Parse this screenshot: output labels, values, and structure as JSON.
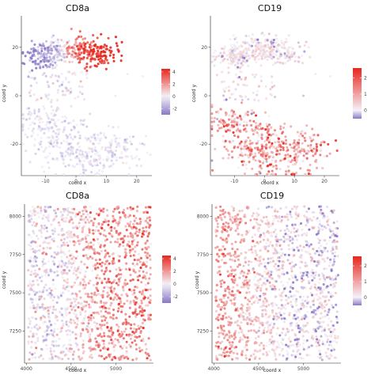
{
  "colors": {
    "low": "#8a78c8",
    "mid": "#f4f2f8",
    "high": "#e8261c",
    "axis": "#222222",
    "background": "#ffffff"
  },
  "chart_data": [
    {
      "type": "scatter",
      "title": "CD8a",
      "xlabel": "coord x",
      "ylabel": "coord y",
      "xlim": [
        -18,
        25
      ],
      "ylim": [
        -33,
        33
      ],
      "xticks": [
        "-10",
        "0",
        "10",
        "20"
      ],
      "yticks": [
        "-20",
        "0",
        "20"
      ],
      "color_scale": {
        "min": -3,
        "max": 4.5,
        "ticks": [
          "4",
          "2",
          "0",
          "-2"
        ],
        "tick_values": [
          4,
          2,
          0,
          -2
        ]
      },
      "point_pattern": "embedding_cd8a",
      "n_points": 900
    },
    {
      "type": "scatter",
      "title": "CD19",
      "xlabel": "coord x",
      "ylabel": "coord y",
      "xlim": [
        -18,
        25
      ],
      "ylim": [
        -33,
        33
      ],
      "xticks": [
        "-10",
        "0",
        "10",
        "20"
      ],
      "yticks": [
        "-20",
        "0",
        "20"
      ],
      "color_scale": {
        "min": -0.5,
        "max": 2.6,
        "ticks": [
          "2",
          "1",
          "0"
        ],
        "tick_values": [
          2,
          1,
          0
        ]
      },
      "point_pattern": "embedding_cd19",
      "n_points": 900
    },
    {
      "type": "scatter",
      "title": "CD8a",
      "xlabel": "coord x",
      "ylabel": "coord y",
      "xlim": [
        3980,
        5420
      ],
      "ylim": [
        7040,
        8080
      ],
      "xticks": [
        "4000",
        "4500",
        "5000"
      ],
      "yticks": [
        "7250",
        "7500",
        "7750",
        "8000"
      ],
      "color_scale": {
        "min": -3,
        "max": 4.5,
        "ticks": [
          "4",
          "2",
          "0",
          "-2"
        ],
        "tick_values": [
          4,
          2,
          0,
          -2
        ]
      },
      "point_pattern": "spatial_cd8a",
      "n_points": 1500
    },
    {
      "type": "scatter",
      "title": "CD19",
      "xlabel": "coord x",
      "ylabel": "coord y",
      "xlim": [
        3980,
        5420
      ],
      "ylim": [
        7040,
        8080
      ],
      "xticks": [
        "4000",
        "4500",
        "5000"
      ],
      "yticks": [
        "7250",
        "7500",
        "7750",
        "8000"
      ],
      "color_scale": {
        "min": -0.5,
        "max": 2.6,
        "ticks": [
          "2",
          "1",
          "0"
        ],
        "tick_values": [
          2,
          1,
          0
        ]
      },
      "point_pattern": "spatial_cd19",
      "n_points": 1500
    }
  ]
}
